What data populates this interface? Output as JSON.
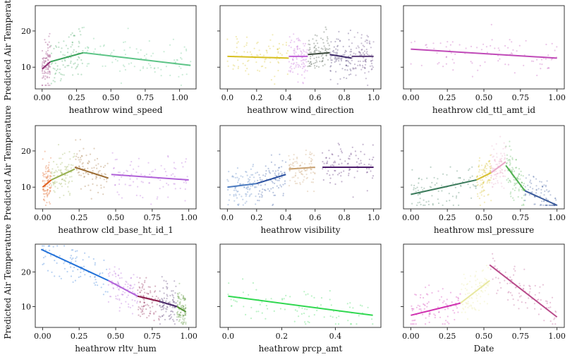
{
  "chart_data": [
    {
      "type": "scatter",
      "xlabel": "heathrow wind_speed",
      "ylabel": "Predicted Air Temperature",
      "xticks": [
        "0.00",
        "0.25",
        "0.50",
        "0.75",
        "1.00"
      ],
      "xticks_v": [
        0,
        0.25,
        0.5,
        0.75,
        1.0
      ],
      "xlim": [
        -0.05,
        1.12
      ],
      "yticks": [
        "10",
        "20"
      ],
      "yticks_v": [
        10,
        20
      ],
      "ylim": [
        4,
        27
      ],
      "series": [
        {
          "color": "#8e2c72",
          "x": [
            0,
            0.06
          ],
          "y": [
            9.5,
            11.5
          ]
        },
        {
          "color": "#3aa35a",
          "x": [
            0.06,
            0.3
          ],
          "y": [
            11.5,
            14
          ]
        },
        {
          "color": "#5cc486",
          "x": [
            0.3,
            1.08
          ],
          "y": [
            14,
            10.5
          ]
        }
      ]
    },
    {
      "type": "scatter",
      "xlabel": "heathrow wind_direction",
      "ylabel": "",
      "xticks": [
        "0.0",
        "0.2",
        "0.4",
        "0.6",
        "0.8",
        "1.0"
      ],
      "xticks_v": [
        0,
        0.2,
        0.4,
        0.6,
        0.8,
        1.0
      ],
      "xlim": [
        -0.05,
        1.05
      ],
      "yticks": [],
      "yticks_v": [],
      "ylim": [
        4,
        27
      ],
      "series": [
        {
          "color": "#d8c020",
          "x": [
            0,
            0.42
          ],
          "y": [
            13,
            12.5
          ]
        },
        {
          "color": "#c05fd6",
          "x": [
            0.42,
            0.55
          ],
          "y": [
            13,
            13
          ]
        },
        {
          "color": "#3c4a3c",
          "x": [
            0.55,
            0.7
          ],
          "y": [
            13.5,
            14
          ]
        },
        {
          "color": "#3e2a6a",
          "x": [
            0.7,
            0.85
          ],
          "y": [
            13.5,
            12.5
          ]
        },
        {
          "color": "#5a3c7a",
          "x": [
            0.85,
            1.0
          ],
          "y": [
            13,
            13
          ]
        }
      ]
    },
    {
      "type": "scatter",
      "xlabel": "heathrow cld_ttl_amt_id",
      "ylabel": "",
      "xticks": [
        "0.00",
        "0.25",
        "0.50",
        "0.75",
        "1.00"
      ],
      "xticks_v": [
        0,
        0.25,
        0.5,
        0.75,
        1.0
      ],
      "xlim": [
        -0.05,
        1.05
      ],
      "yticks": [],
      "yticks_v": [],
      "ylim": [
        4,
        27
      ],
      "series": [
        {
          "color": "#c04ab8",
          "x": [
            0,
            1.0
          ],
          "y": [
            15,
            12.5
          ]
        }
      ]
    },
    {
      "type": "scatter",
      "xlabel": "heathrow cld_base_ht_id_1",
      "ylabel": "Predicted Air Temperature",
      "xticks": [
        "0.00",
        "0.25",
        "0.50",
        "0.75",
        "1.00"
      ],
      "xticks_v": [
        0,
        0.25,
        0.5,
        0.75,
        1.0
      ],
      "xlim": [
        -0.05,
        1.05
      ],
      "yticks": [
        "10",
        "20"
      ],
      "yticks_v": [
        10,
        20
      ],
      "ylim": [
        4,
        27
      ],
      "series": [
        {
          "color": "#e06020",
          "x": [
            0,
            0.06
          ],
          "y": [
            10,
            12
          ]
        },
        {
          "color": "#98b050",
          "x": [
            0.06,
            0.22
          ],
          "y": [
            12,
            15
          ]
        },
        {
          "color": "#9a6a30",
          "x": [
            0.22,
            0.45
          ],
          "y": [
            15.5,
            12.5
          ]
        },
        {
          "color": "#b060d8",
          "x": [
            0.47,
            1.0
          ],
          "y": [
            13.5,
            12
          ]
        }
      ]
    },
    {
      "type": "scatter",
      "xlabel": "heathrow visibility",
      "ylabel": "",
      "xticks": [
        "0.0",
        "0.2",
        "0.4",
        "0.6",
        "0.8",
        "1.0"
      ],
      "xticks_v": [
        0,
        0.2,
        0.4,
        0.6,
        0.8,
        1.0
      ],
      "xlim": [
        -0.05,
        1.05
      ],
      "yticks": [],
      "yticks_v": [],
      "ylim": [
        4,
        27
      ],
      "series": [
        {
          "color": "#4a7abf",
          "x": [
            0,
            0.2
          ],
          "y": [
            10,
            11
          ]
        },
        {
          "color": "#2a50a0",
          "x": [
            0.2,
            0.4
          ],
          "y": [
            11,
            13.5
          ]
        },
        {
          "color": "#c8a070",
          "x": [
            0.42,
            0.6
          ],
          "y": [
            15,
            15.5
          ]
        },
        {
          "color": "#4a1a6a",
          "x": [
            0.65,
            1.0
          ],
          "y": [
            15.5,
            15.5
          ]
        }
      ]
    },
    {
      "type": "scatter",
      "xlabel": "heathrow msl_pressure",
      "ylabel": "",
      "xticks": [
        "0.00",
        "0.25",
        "0.50",
        "0.75",
        "1.00"
      ],
      "xticks_v": [
        0,
        0.25,
        0.5,
        0.75,
        1.0
      ],
      "xlim": [
        -0.05,
        1.05
      ],
      "yticks": [],
      "yticks_v": [],
      "ylim": [
        4,
        27
      ],
      "series": [
        {
          "color": "#3a7a5a",
          "x": [
            0,
            0.45
          ],
          "y": [
            8,
            12
          ]
        },
        {
          "color": "#d8c030",
          "x": [
            0.45,
            0.55
          ],
          "y": [
            12,
            14
          ]
        },
        {
          "color": "#e8a8c8",
          "x": [
            0.55,
            0.65
          ],
          "y": [
            14,
            17
          ]
        },
        {
          "color": "#50b050",
          "x": [
            0.65,
            0.78
          ],
          "y": [
            16,
            9
          ]
        },
        {
          "color": "#3a5a9a",
          "x": [
            0.78,
            1.0
          ],
          "y": [
            9,
            5
          ]
        }
      ]
    },
    {
      "type": "scatter",
      "xlabel": "heathrow rltv_hum",
      "ylabel": "Predicted Air Temperature",
      "xticks": [
        "0.00",
        "0.25",
        "0.50",
        "0.75",
        "1.00"
      ],
      "xticks_v": [
        0,
        0.25,
        0.5,
        0.75,
        1.0
      ],
      "xlim": [
        -0.05,
        1.05
      ],
      "yticks": [
        "10",
        "20"
      ],
      "yticks_v": [
        10,
        20
      ],
      "ylim": [
        4,
        28
      ],
      "series": [
        {
          "color": "#2070d8",
          "x": [
            -0.01,
            0.45
          ],
          "y": [
            26.5,
            17.5
          ]
        },
        {
          "color": "#b060d8",
          "x": [
            0.45,
            0.65
          ],
          "y": [
            17.5,
            13
          ]
        },
        {
          "color": "#8a1a4a",
          "x": [
            0.65,
            0.8
          ],
          "y": [
            13,
            11.5
          ]
        },
        {
          "color": "#4a2a6a",
          "x": [
            0.8,
            0.92
          ],
          "y": [
            11.5,
            10
          ]
        },
        {
          "color": "#509030",
          "x": [
            0.92,
            0.98
          ],
          "y": [
            10,
            8.5
          ]
        }
      ]
    },
    {
      "type": "scatter",
      "xlabel": "heathrow prcp_amt",
      "ylabel": "",
      "xticks": [
        "0.0",
        "0.2",
        "0.4"
      ],
      "xticks_v": [
        0,
        0.2,
        0.4
      ],
      "xlim": [
        -0.03,
        0.57
      ],
      "yticks": [],
      "yticks_v": [],
      "ylim": [
        4,
        28
      ],
      "series": [
        {
          "color": "#30d850",
          "x": [
            0,
            0.54
          ],
          "y": [
            13,
            7.5
          ]
        }
      ]
    },
    {
      "type": "scatter",
      "xlabel": "Date",
      "ylabel": "",
      "xticks": [
        "0.00",
        "0.25",
        "0.50",
        "0.75",
        "1.00"
      ],
      "xticks_v": [
        0,
        0.25,
        0.5,
        0.75,
        1.0
      ],
      "xlim": [
        -0.05,
        1.05
      ],
      "yticks": [],
      "yticks_v": [],
      "ylim": [
        4,
        28
      ],
      "series": [
        {
          "color": "#d030b0",
          "x": [
            0,
            0.34
          ],
          "y": [
            7.5,
            11
          ]
        },
        {
          "color": "#e8e8a0",
          "x": [
            0.34,
            0.54
          ],
          "y": [
            11,
            17.5
          ]
        },
        {
          "color": "#b84a8a",
          "x": [
            0.54,
            1.0
          ],
          "y": [
            22,
            7
          ]
        }
      ]
    }
  ]
}
